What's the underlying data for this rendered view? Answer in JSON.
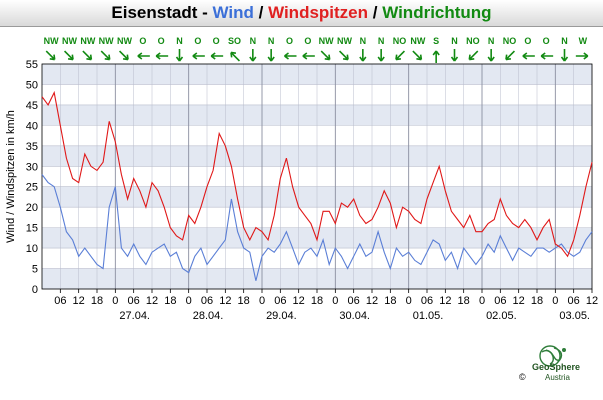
{
  "title": {
    "station": "Eisenstadt",
    "dash": " - ",
    "wind": "Wind",
    "sep1": " / ",
    "gust": "Windspitzen",
    "sep2": " / ",
    "direction": "Windrichtung"
  },
  "logo": {
    "name": "GeoSphere",
    "sub": "Austria",
    "copyright": "©"
  },
  "colors": {
    "wind": "#5b7fd6",
    "gust": "#e01818",
    "direction": "#128a12",
    "band": "#e3e8f2",
    "grid": "#b8bccc"
  },
  "chart_data": {
    "type": "line",
    "title": "Eisenstadt - Wind / Windspitzen / Windrichtung",
    "ylabel": "Wind / Windspitzen in km/h",
    "ylim": [
      0,
      55
    ],
    "yticks": [
      0,
      5,
      10,
      15,
      20,
      25,
      30,
      35,
      40,
      45,
      50,
      55
    ],
    "grid": true,
    "x_hours_range": [
      0,
      180
    ],
    "xtick_hours": [
      6,
      12,
      18,
      24,
      30,
      36,
      42,
      48,
      54,
      60,
      66,
      72,
      78,
      84,
      90,
      96,
      102,
      108,
      114,
      120,
      126,
      132,
      138,
      144,
      150,
      156,
      162,
      168,
      174,
      180
    ],
    "xtick_labels": [
      "06",
      "12",
      "18",
      "0",
      "06",
      "12",
      "18",
      "0",
      "06",
      "12",
      "18",
      "0",
      "06",
      "12",
      "18",
      "0",
      "06",
      "12",
      "18",
      "0",
      "06",
      "12",
      "18",
      "0",
      "06",
      "12",
      "18",
      "0",
      "06",
      "12"
    ],
    "date_labels": [
      {
        "hour": 36,
        "label": "27.04."
      },
      {
        "hour": 60,
        "label": "28.04."
      },
      {
        "hour": 84,
        "label": "29.04."
      },
      {
        "hour": 108,
        "label": "30.04."
      },
      {
        "hour": 132,
        "label": "01.05."
      },
      {
        "hour": 156,
        "label": "02.05."
      },
      {
        "hour": 180,
        "label": "03.05."
      }
    ],
    "series": [
      {
        "name": "Wind",
        "color": "#5b7fd6",
        "hours": [
          0,
          2,
          4,
          6,
          8,
          10,
          12,
          14,
          16,
          18,
          20,
          22,
          24,
          26,
          28,
          30,
          32,
          34,
          36,
          38,
          40,
          42,
          44,
          46,
          48,
          50,
          52,
          54,
          56,
          58,
          60,
          62,
          64,
          66,
          68,
          70,
          72,
          74,
          76,
          78,
          80,
          82,
          84,
          86,
          88,
          90,
          92,
          94,
          96,
          98,
          100,
          102,
          104,
          106,
          108,
          110,
          112,
          114,
          116,
          118,
          120,
          122,
          124,
          126,
          128,
          130,
          132,
          134,
          136,
          138,
          140,
          142,
          144,
          146,
          148,
          150,
          152,
          154,
          156,
          158,
          160,
          162,
          164,
          166,
          168,
          170,
          172,
          174,
          176,
          178,
          180
        ],
        "values": [
          28,
          26,
          25,
          20,
          14,
          12,
          8,
          10,
          8,
          6,
          5,
          20,
          25,
          10,
          8,
          11,
          8,
          6,
          9,
          10,
          11,
          8,
          9,
          5,
          4,
          8,
          10,
          6,
          8,
          10,
          12,
          22,
          14,
          10,
          9,
          2,
          8,
          10,
          9,
          11,
          14,
          10,
          6,
          9,
          10,
          8,
          12,
          6,
          10,
          8,
          5,
          8,
          11,
          8,
          9,
          14,
          9,
          5,
          10,
          8,
          9,
          7,
          6,
          9,
          12,
          11,
          7,
          9,
          5,
          10,
          8,
          6,
          8,
          11,
          9,
          13,
          10,
          7,
          10,
          9,
          8,
          10,
          10,
          9,
          10,
          11,
          9,
          8,
          9,
          12,
          14
        ]
      },
      {
        "name": "Windspitzen",
        "color": "#e01818",
        "hours": [
          0,
          2,
          4,
          6,
          8,
          10,
          12,
          14,
          16,
          18,
          20,
          22,
          24,
          26,
          28,
          30,
          32,
          34,
          36,
          38,
          40,
          42,
          44,
          46,
          48,
          50,
          52,
          54,
          56,
          58,
          60,
          62,
          64,
          66,
          68,
          70,
          72,
          74,
          76,
          78,
          80,
          82,
          84,
          86,
          88,
          90,
          92,
          94,
          96,
          98,
          100,
          102,
          104,
          106,
          108,
          110,
          112,
          114,
          116,
          118,
          120,
          122,
          124,
          126,
          128,
          130,
          132,
          134,
          136,
          138,
          140,
          142,
          144,
          146,
          148,
          150,
          152,
          154,
          156,
          158,
          160,
          162,
          164,
          166,
          168,
          170,
          172,
          174,
          176,
          178,
          180
        ],
        "values": [
          47,
          45,
          48,
          40,
          32,
          27,
          26,
          33,
          30,
          29,
          31,
          41,
          36,
          28,
          22,
          27,
          24,
          20,
          26,
          24,
          20,
          15,
          13,
          12,
          18,
          16,
          20,
          25,
          29,
          38,
          35,
          30,
          22,
          15,
          12,
          15,
          14,
          12,
          18,
          27,
          32,
          25,
          20,
          18,
          16,
          12,
          19,
          19,
          16,
          21,
          20,
          22,
          18,
          16,
          17,
          20,
          24,
          21,
          15,
          20,
          19,
          17,
          16,
          22,
          26,
          30,
          24,
          19,
          17,
          15,
          18,
          14,
          14,
          16,
          17,
          22,
          18,
          16,
          15,
          17,
          15,
          12,
          15,
          17,
          11,
          10,
          8,
          12,
          18,
          25,
          31
        ]
      }
    ],
    "direction_hours": [
      3,
      9,
      15,
      21,
      27,
      33,
      39,
      45,
      51,
      57,
      63,
      69,
      75,
      81,
      87,
      93,
      99,
      105,
      111,
      117,
      123,
      129,
      135,
      141,
      147,
      153,
      159,
      165,
      171,
      177
    ],
    "direction_labels": [
      "NW",
      "NW",
      "NW",
      "NW",
      "NW",
      "O",
      "O",
      "N",
      "O",
      "O",
      "SO",
      "N",
      "N",
      "O",
      "O",
      "NW",
      "NW",
      "N",
      "N",
      "NO",
      "NW",
      "S",
      "N",
      "NO",
      "N",
      "NO",
      "O",
      "O",
      "N",
      "W"
    ]
  }
}
